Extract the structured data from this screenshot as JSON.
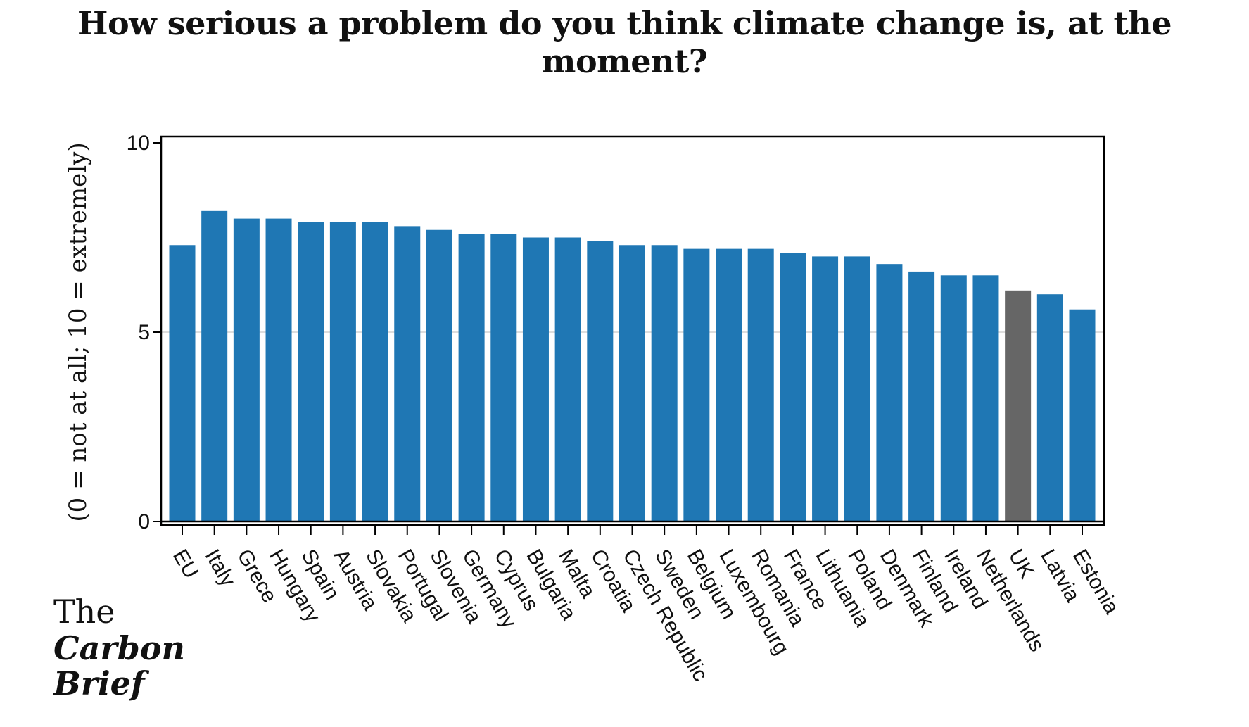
{
  "chart_data": {
    "type": "bar",
    "title": "How serious a problem do you think climate change is, at the moment?",
    "ylabel": "(0 = not at all; 10 = extremely)",
    "xlabel": "",
    "ylim": [
      0,
      10
    ],
    "yticks": [
      0,
      5,
      10
    ],
    "grid": "horizontal at 5",
    "categories": [
      "EU",
      "Italy",
      "Grece",
      "Hungary",
      "Spain",
      "Austria",
      "Slovakia",
      "Portugal",
      "Slovenia",
      "Germany",
      "Cyprus",
      "Bulgaria",
      "Malta",
      "Croatia",
      "Czech Republic",
      "Sweden",
      "Belgium",
      "Luxembourg",
      "Romania",
      "France",
      "Lithuania",
      "Poland",
      "Denmark",
      "Finland",
      "Ireland",
      "Netherlands",
      "UK",
      "Latvia",
      "Estonia"
    ],
    "values": [
      7.3,
      8.2,
      8.0,
      8.0,
      7.9,
      7.9,
      7.9,
      7.8,
      7.7,
      7.6,
      7.6,
      7.5,
      7.5,
      7.4,
      7.3,
      7.3,
      7.2,
      7.2,
      7.2,
      7.1,
      7.0,
      7.0,
      6.8,
      6.6,
      6.5,
      6.5,
      6.1,
      6.0,
      5.6
    ],
    "highlight_category": "UK",
    "colors": {
      "bar": "#1f77b4",
      "highlight": "#666666",
      "grid": "#dddddd",
      "axis": "#000000"
    }
  },
  "logo": {
    "line1": "The",
    "line2": "Carbon",
    "line3": "Brief"
  }
}
